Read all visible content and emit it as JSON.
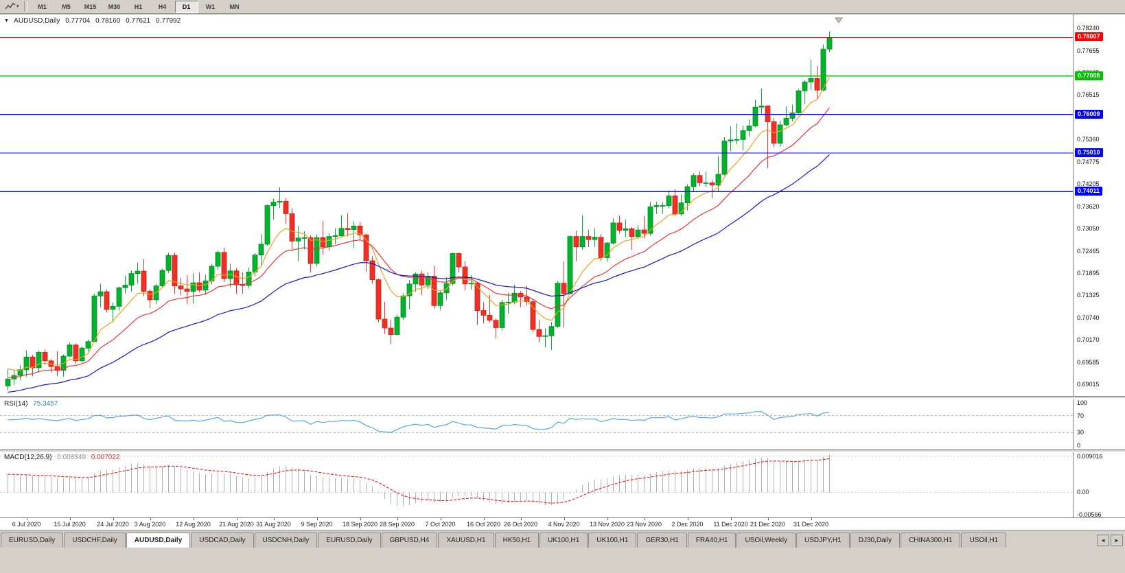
{
  "colors": {
    "bull": "#00b22c",
    "bull_stroke": "#008f23",
    "bear": "#ee3124",
    "bear_stroke": "#c21f15",
    "rsi_line": "#58a6e0",
    "macd_hist": "#b0b0b0",
    "macd_signal": "#ff0000",
    "level_dash": "#b8b8b8"
  },
  "toolbar": {
    "chart_tool_icon": "chart-cursor-icon",
    "timeframes": [
      "M1",
      "M5",
      "M15",
      "M30",
      "H1",
      "H4",
      "D1",
      "W1",
      "MN"
    ],
    "active_timeframe": "D1"
  },
  "main_chart": {
    "header": {
      "symbol_period": "AUDUSD,Daily",
      "open": "0.77704",
      "high": "0.78160",
      "low": "0.77621",
      "close": "0.77992"
    },
    "y_ticks": [
      "0.78240",
      "0.77655",
      "0.77085",
      "0.76515",
      "0.75945",
      "0.75360",
      "0.74775",
      "0.74205",
      "0.73620",
      "0.73050",
      "0.72465",
      "0.71895",
      "0.71325",
      "0.70740",
      "0.70170",
      "0.69585",
      "0.69015"
    ],
    "hlines": [
      {
        "price": 0.78007,
        "label": "0.78007",
        "color": "#ff0000",
        "kind": "resistance-line"
      },
      {
        "price": 0.77008,
        "label": "0.77008",
        "color": "#00c000",
        "kind": "support-line"
      },
      {
        "price": 0.76009,
        "label": "0.76009",
        "color": "#0000ff",
        "kind": "support-line"
      },
      {
        "price": 0.7501,
        "label": "0.75010",
        "color": "#0000ff",
        "kind": "support-line"
      },
      {
        "price": 0.74011,
        "label": "0.74011",
        "color": "#0000ff",
        "kind": "support-line"
      }
    ]
  },
  "rsi": {
    "name": "RSI(14)",
    "value": "75.3457",
    "ticks": [
      {
        "text": "100",
        "v": 100
      },
      {
        "text": "70",
        "v": 70
      },
      {
        "text": "30",
        "v": 30
      },
      {
        "text": "0",
        "v": 0
      }
    ],
    "levels": [
      70,
      30
    ]
  },
  "macd": {
    "name": "MACD(12,26,9)",
    "value_main": "0.008349",
    "value_signal": "0.007022",
    "ticks": [
      {
        "text": "0.009016",
        "v": 0.009016
      },
      {
        "text": "0.00",
        "v": 0
      },
      {
        "text": "-0.00566",
        "v": -0.00566
      }
    ],
    "dotted_levels": [
      0.009016,
      0
    ]
  },
  "x_axis": {
    "labels": [
      {
        "text": "6 Jul 2020",
        "index": 3
      },
      {
        "text": "15 Jul 2020",
        "index": 10
      },
      {
        "text": "24 Jul 2020",
        "index": 17
      },
      {
        "text": "3 Aug 2020",
        "index": 23
      },
      {
        "text": "12 Aug 2020",
        "index": 30
      },
      {
        "text": "21 Aug 2020",
        "index": 37
      },
      {
        "text": "31 Aug 2020",
        "index": 43
      },
      {
        "text": "9 Sep 2020",
        "index": 50
      },
      {
        "text": "18 Sep 2020",
        "index": 57
      },
      {
        "text": "28 Sep 2020",
        "index": 63
      },
      {
        "text": "7 Oct 2020",
        "index": 70
      },
      {
        "text": "16 Oct 2020",
        "index": 77
      },
      {
        "text": "26 Oct 2020",
        "index": 83
      },
      {
        "text": "4 Nov 2020",
        "index": 90
      },
      {
        "text": "13 Nov 2020",
        "index": 97
      },
      {
        "text": "23 Nov 2020",
        "index": 103
      },
      {
        "text": "2 Dec 2020",
        "index": 110
      },
      {
        "text": "11 Dec 2020",
        "index": 117
      },
      {
        "text": "21 Dec 2020",
        "index": 123
      },
      {
        "text": "31 Dec 2020",
        "index": 130
      }
    ]
  },
  "tabs": {
    "items": [
      "EURUSD,Daily",
      "USDCHF,Daily",
      "AUDUSD,Daily",
      "USDCAD,Daily",
      "USDCNH,Daily",
      "EURUSD,Daily",
      "GBPUSD,H4",
      "XAUUSD,H1",
      "HK50,H1",
      "UK100,H1",
      "UK100,H1",
      "GER30,H1",
      "FRA40,H1",
      "USOil,Weekly",
      "USDJPY,H1",
      "DJ30,Daily",
      "CHINA300,H1",
      "USOil,H1"
    ],
    "active_index": 2,
    "scroll_left": "◄",
    "scroll_right": "►"
  },
  "chart_data": {
    "type": "candlestick",
    "symbol": "AUDUSD",
    "timeframe": "Daily",
    "price_range": {
      "max": 0.786,
      "min": 0.6872
    },
    "macd_scale": {
      "max": 0.01,
      "min": -0.0063
    },
    "layout": {
      "candle_spacing": 9,
      "candle_width": 7,
      "first_x": 8,
      "right_shift_gap": true
    },
    "moving_averages": [
      {
        "name": "ma-fast",
        "period": 8,
        "seed": 0.695,
        "color": "#efa320"
      },
      {
        "name": "ma-mid",
        "period": 18,
        "seed": 0.692,
        "color": "#ee3333"
      },
      {
        "name": "ma-slow",
        "period": 40,
        "seed": 0.688,
        "color": "#1414c8"
      }
    ],
    "indicators": {
      "rsi_period": 14,
      "macd": [
        12,
        26,
        9
      ]
    },
    "candles": [
      [
        0.6898,
        0.6942,
        0.6886,
        0.6916
      ],
      [
        0.6916,
        0.6938,
        0.6901,
        0.6925
      ],
      [
        0.6925,
        0.6952,
        0.6913,
        0.694
      ],
      [
        0.694,
        0.699,
        0.6922,
        0.6973
      ],
      [
        0.6973,
        0.6978,
        0.6923,
        0.6945
      ],
      [
        0.6945,
        0.699,
        0.6932,
        0.6985
      ],
      [
        0.6985,
        0.6993,
        0.6953,
        0.6963
      ],
      [
        0.6963,
        0.6967,
        0.6933,
        0.6948
      ],
      [
        0.6948,
        0.6988,
        0.6923,
        0.6938
      ],
      [
        0.6938,
        0.6979,
        0.6922,
        0.6975
      ],
      [
        0.6975,
        0.701,
        0.6973,
        0.7004
      ],
      [
        0.7004,
        0.7008,
        0.6955,
        0.6963
      ],
      [
        0.6963,
        0.7,
        0.6958,
        0.6996
      ],
      [
        0.6996,
        0.7018,
        0.6987,
        0.7013
      ],
      [
        0.7013,
        0.7137,
        0.7011,
        0.7131
      ],
      [
        0.7131,
        0.7163,
        0.7101,
        0.7142
      ],
      [
        0.7142,
        0.7148,
        0.7088,
        0.7096
      ],
      [
        0.7096,
        0.7114,
        0.7063,
        0.7104
      ],
      [
        0.7104,
        0.7155,
        0.7093,
        0.7152
      ],
      [
        0.7152,
        0.7183,
        0.7137,
        0.7159
      ],
      [
        0.7159,
        0.7197,
        0.7142,
        0.7189
      ],
      [
        0.7189,
        0.7217,
        0.7163,
        0.7195
      ],
      [
        0.7195,
        0.7227,
        0.713,
        0.7143
      ],
      [
        0.7143,
        0.7149,
        0.71,
        0.7121
      ],
      [
        0.7121,
        0.7163,
        0.711,
        0.7157
      ],
      [
        0.7157,
        0.7202,
        0.7153,
        0.7197
      ],
      [
        0.7197,
        0.7243,
        0.719,
        0.7236
      ],
      [
        0.7236,
        0.7244,
        0.7136,
        0.7157
      ],
      [
        0.7157,
        0.7177,
        0.7133,
        0.7149
      ],
      [
        0.7149,
        0.7185,
        0.7109,
        0.7143
      ],
      [
        0.7143,
        0.719,
        0.7112,
        0.7165
      ],
      [
        0.7165,
        0.7192,
        0.7141,
        0.7146
      ],
      [
        0.7146,
        0.7186,
        0.7134,
        0.717
      ],
      [
        0.717,
        0.7214,
        0.7161,
        0.7208
      ],
      [
        0.7208,
        0.7248,
        0.7199,
        0.7244
      ],
      [
        0.7244,
        0.7256,
        0.7167,
        0.7176
      ],
      [
        0.7176,
        0.7215,
        0.7154,
        0.7196
      ],
      [
        0.7196,
        0.7203,
        0.7136,
        0.716
      ],
      [
        0.716,
        0.7192,
        0.7137,
        0.7158
      ],
      [
        0.7158,
        0.7205,
        0.715,
        0.7193
      ],
      [
        0.7193,
        0.7242,
        0.7182,
        0.7237
      ],
      [
        0.7237,
        0.7291,
        0.7211,
        0.7265
      ],
      [
        0.7265,
        0.7368,
        0.7261,
        0.7365
      ],
      [
        0.7365,
        0.7383,
        0.7329,
        0.7374
      ],
      [
        0.7374,
        0.7413,
        0.7359,
        0.7376
      ],
      [
        0.7376,
        0.7385,
        0.7317,
        0.7344
      ],
      [
        0.7344,
        0.7358,
        0.7252,
        0.7273
      ],
      [
        0.7273,
        0.7312,
        0.7221,
        0.7281
      ],
      [
        0.7281,
        0.7298,
        0.7251,
        0.7282
      ],
      [
        0.7282,
        0.7288,
        0.7192,
        0.7215
      ],
      [
        0.7215,
        0.729,
        0.7208,
        0.7282
      ],
      [
        0.7282,
        0.7325,
        0.7238,
        0.7258
      ],
      [
        0.7258,
        0.7294,
        0.7248,
        0.7285
      ],
      [
        0.7285,
        0.7306,
        0.7265,
        0.7287
      ],
      [
        0.7287,
        0.734,
        0.7283,
        0.7306
      ],
      [
        0.7306,
        0.7345,
        0.7285,
        0.7303
      ],
      [
        0.7303,
        0.7324,
        0.7255,
        0.7312
      ],
      [
        0.7312,
        0.7322,
        0.7276,
        0.7289
      ],
      [
        0.7289,
        0.7292,
        0.7195,
        0.7222
      ],
      [
        0.7222,
        0.7234,
        0.7163,
        0.7173
      ],
      [
        0.7173,
        0.7176,
        0.7063,
        0.7071
      ],
      [
        0.7071,
        0.7116,
        0.7033,
        0.7048
      ],
      [
        0.7048,
        0.707,
        0.7006,
        0.7031
      ],
      [
        0.7031,
        0.7083,
        0.7029,
        0.7076
      ],
      [
        0.7076,
        0.7138,
        0.7069,
        0.7131
      ],
      [
        0.7131,
        0.7172,
        0.7096,
        0.7162
      ],
      [
        0.7162,
        0.7192,
        0.7142,
        0.7188
      ],
      [
        0.7188,
        0.7196,
        0.7133,
        0.7159
      ],
      [
        0.7159,
        0.7192,
        0.7149,
        0.7182
      ],
      [
        0.7182,
        0.7209,
        0.7097,
        0.7106
      ],
      [
        0.7106,
        0.7146,
        0.7095,
        0.7139
      ],
      [
        0.7139,
        0.7179,
        0.7121,
        0.7163
      ],
      [
        0.7163,
        0.7243,
        0.7158,
        0.7241
      ],
      [
        0.7241,
        0.7243,
        0.7192,
        0.7206
      ],
      [
        0.7206,
        0.7221,
        0.7146,
        0.7162
      ],
      [
        0.7162,
        0.7185,
        0.7148,
        0.7164
      ],
      [
        0.7164,
        0.7167,
        0.7056,
        0.7093
      ],
      [
        0.7093,
        0.7115,
        0.706,
        0.7081
      ],
      [
        0.7081,
        0.7134,
        0.7062,
        0.7068
      ],
      [
        0.7068,
        0.7073,
        0.7021,
        0.7049
      ],
      [
        0.7049,
        0.7121,
        0.7042,
        0.7114
      ],
      [
        0.7114,
        0.7139,
        0.7085,
        0.7115
      ],
      [
        0.7115,
        0.716,
        0.711,
        0.7138
      ],
      [
        0.7138,
        0.7144,
        0.7102,
        0.7128
      ],
      [
        0.7128,
        0.7158,
        0.7106,
        0.7116
      ],
      [
        0.7116,
        0.7122,
        0.7037,
        0.7044
      ],
      [
        0.7044,
        0.7069,
        0.7011,
        0.7026
      ],
      [
        0.7026,
        0.7047,
        0.6998,
        0.7028
      ],
      [
        0.7028,
        0.7063,
        0.6991,
        0.7052
      ],
      [
        0.7052,
        0.717,
        0.7048,
        0.7164
      ],
      [
        0.7164,
        0.7221,
        0.7049,
        0.7137
      ],
      [
        0.7137,
        0.7288,
        0.7135,
        0.7285
      ],
      [
        0.7285,
        0.73,
        0.7221,
        0.7258
      ],
      [
        0.7258,
        0.734,
        0.7251,
        0.7285
      ],
      [
        0.7285,
        0.7302,
        0.7258,
        0.7277
      ],
      [
        0.7277,
        0.7306,
        0.7258,
        0.7283
      ],
      [
        0.7283,
        0.7291,
        0.7222,
        0.723
      ],
      [
        0.723,
        0.7271,
        0.722,
        0.7268
      ],
      [
        0.7268,
        0.7332,
        0.7264,
        0.732
      ],
      [
        0.732,
        0.7339,
        0.7293,
        0.7301
      ],
      [
        0.7301,
        0.7329,
        0.7283,
        0.7305
      ],
      [
        0.7305,
        0.731,
        0.725,
        0.7285
      ],
      [
        0.7285,
        0.7315,
        0.7278,
        0.7302
      ],
      [
        0.7302,
        0.7338,
        0.728,
        0.7293
      ],
      [
        0.7293,
        0.7374,
        0.7287,
        0.7362
      ],
      [
        0.7362,
        0.7374,
        0.7343,
        0.7365
      ],
      [
        0.7365,
        0.7374,
        0.7344,
        0.7365
      ],
      [
        0.7365,
        0.7404,
        0.7358,
        0.739
      ],
      [
        0.739,
        0.7407,
        0.7339,
        0.7343
      ],
      [
        0.7343,
        0.7394,
        0.7338,
        0.7372
      ],
      [
        0.7372,
        0.742,
        0.7352,
        0.7414
      ],
      [
        0.7414,
        0.7449,
        0.74,
        0.7443
      ],
      [
        0.7443,
        0.7454,
        0.7415,
        0.7424
      ],
      [
        0.7424,
        0.7453,
        0.7413,
        0.7424
      ],
      [
        0.7424,
        0.7431,
        0.7384,
        0.7418
      ],
      [
        0.7418,
        0.7493,
        0.74,
        0.7446
      ],
      [
        0.7446,
        0.7542,
        0.7443,
        0.7532
      ],
      [
        0.7532,
        0.757,
        0.7506,
        0.7535
      ],
      [
        0.7535,
        0.7578,
        0.7524,
        0.7536
      ],
      [
        0.7536,
        0.7572,
        0.7508,
        0.7559
      ],
      [
        0.7559,
        0.7588,
        0.7543,
        0.7571
      ],
      [
        0.7571,
        0.7639,
        0.7568,
        0.762
      ],
      [
        0.762,
        0.7668,
        0.7601,
        0.7623
      ],
      [
        0.7623,
        0.7625,
        0.7462,
        0.7582
      ],
      [
        0.7582,
        0.7591,
        0.7516,
        0.7526
      ],
      [
        0.7526,
        0.7585,
        0.7517,
        0.7574
      ],
      [
        0.7574,
        0.7622,
        0.757,
        0.7591
      ],
      [
        0.7591,
        0.7626,
        0.7583,
        0.7605
      ],
      [
        0.7605,
        0.7666,
        0.76,
        0.7662
      ],
      [
        0.7662,
        0.769,
        0.7627,
        0.7685
      ],
      [
        0.7685,
        0.7743,
        0.7664,
        0.7694
      ],
      [
        0.7694,
        0.7727,
        0.7642,
        0.7664
      ],
      [
        0.7664,
        0.7782,
        0.7661,
        0.777
      ],
      [
        0.777,
        0.7816,
        0.7762,
        0.7799
      ]
    ]
  }
}
